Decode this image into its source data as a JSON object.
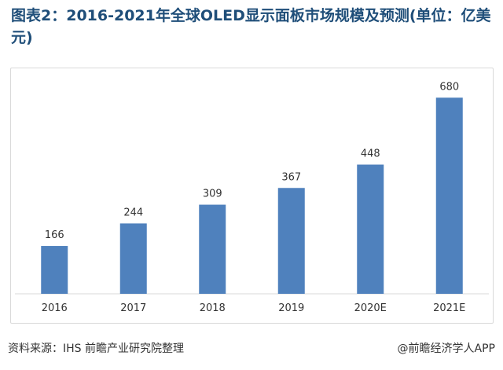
{
  "title": "图表2：2016-2021年全球OLED显示面板市场规模及预测(单位：亿美元)",
  "footer": {
    "source": "资料来源：IHS 前瞻产业研究院整理",
    "credit": "@前瞻经济学人APP"
  },
  "chart_data": {
    "type": "bar",
    "title": "图表2：2016-2021年全球OLED显示面板市场规模及预测(单位：亿美元)",
    "categories": [
      "2016",
      "2017",
      "2018",
      "2019",
      "2020E",
      "2021E"
    ],
    "series": [
      {
        "values": [
          166,
          244,
          309,
          367,
          448,
          680
        ]
      }
    ],
    "data_labels": [
      "166",
      "244",
      "309",
      "367",
      "448",
      "680"
    ],
    "ylim": [
      0,
      700
    ],
    "grid": false,
    "bar_color": "#4f81bd"
  }
}
